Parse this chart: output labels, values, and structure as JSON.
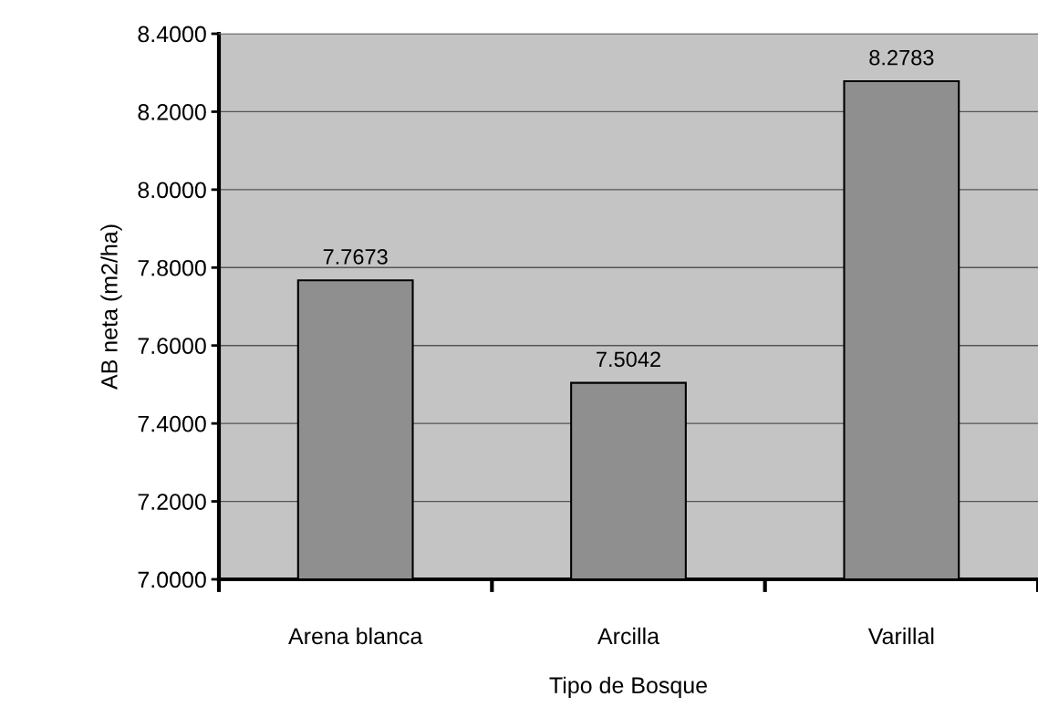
{
  "chart_data": {
    "type": "bar",
    "xlabel": "Tipo de Bosque",
    "ylabel": "AB neta (m2/ha)",
    "categories": [
      "Arena blanca",
      "Arcilla",
      "Varillal"
    ],
    "values": [
      7.7673,
      7.5042,
      8.2783
    ],
    "color": "#8f8f8f",
    "data_labels": true,
    "ylim": [
      7.0,
      8.4
    ],
    "yticks": [
      {
        "value": 7.0,
        "label": "7.0000"
      },
      {
        "value": 7.2,
        "label": "7.2000"
      },
      {
        "value": 7.4,
        "label": "7.4000"
      },
      {
        "value": 7.6,
        "label": "7.6000"
      },
      {
        "value": 7.8,
        "label": "7.8000"
      },
      {
        "value": 8.0,
        "label": "8.0000"
      },
      {
        "value": 8.2,
        "label": "8.2000"
      },
      {
        "value": 8.4,
        "label": "8.4000"
      }
    ],
    "grid": "y",
    "legend": false
  }
}
